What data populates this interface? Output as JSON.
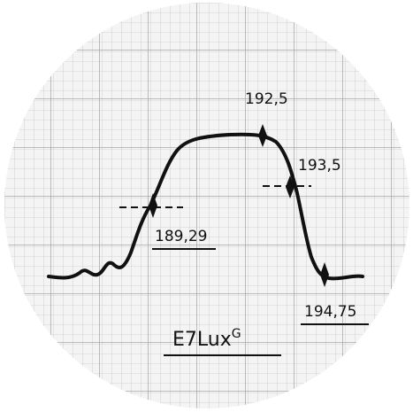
{
  "labels": {
    "peak_top": "192,5",
    "right_edge": "193,5",
    "left_edge": "189,29",
    "right_foot": "194,75"
  },
  "title": {
    "main": "E7Lux",
    "superscript": "G"
  }
}
